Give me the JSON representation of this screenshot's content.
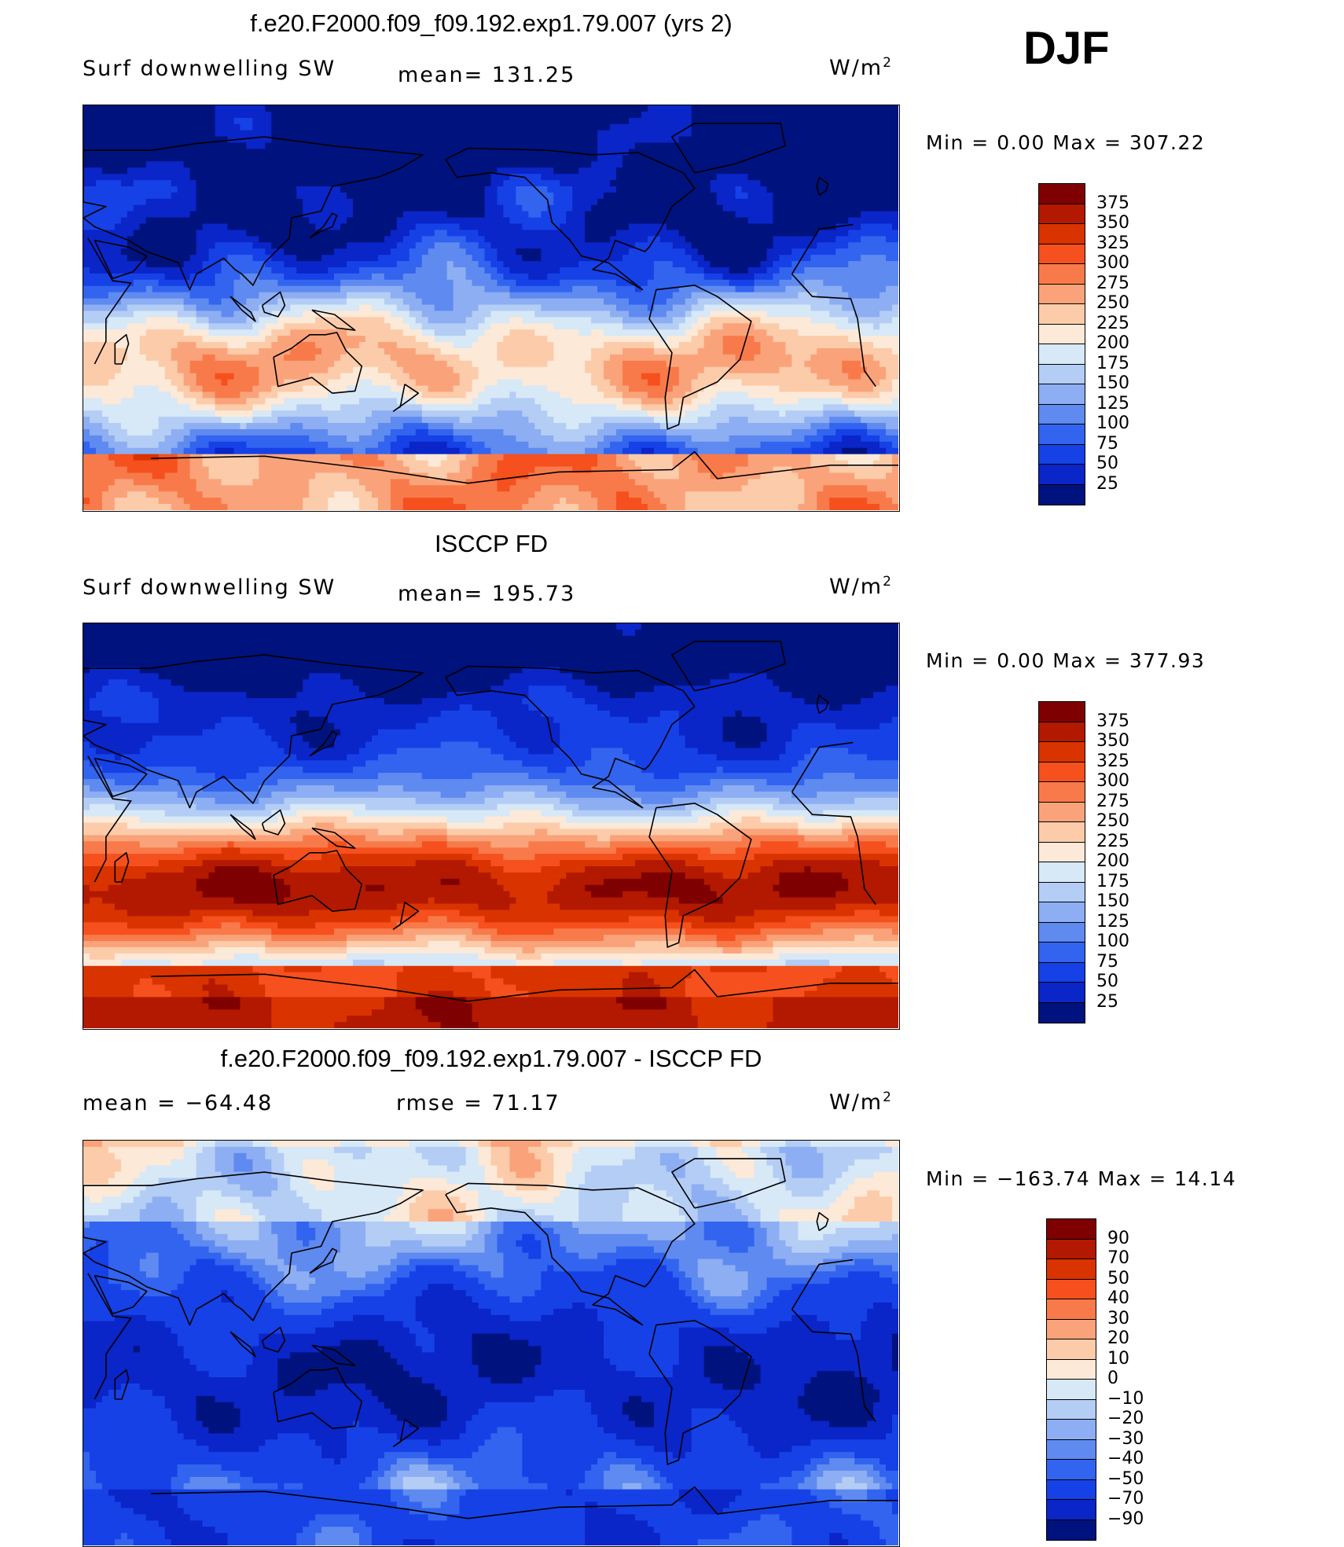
{
  "season": "DJF",
  "panels": [
    {
      "title": "f.e20.F2000.f09_f09.192.exp1.79.007 (yrs 2)",
      "left_label": "Surf downwelling SW",
      "center_label": "mean= 131.25",
      "units": "W/m",
      "units_exp": "2",
      "minmax": "Min =    0.00  Max  =  307.22",
      "palette": "abs",
      "field": "model"
    },
    {
      "title": "ISCCP FD",
      "left_label": "Surf downwelling SW",
      "center_label": "mean= 195.73",
      "units": "W/m",
      "units_exp": "2",
      "minmax": "Min =    0.00  Max  =  377.93",
      "palette": "abs",
      "field": "obs"
    },
    {
      "title": "f.e20.F2000.f09_f09.192.exp1.79.007 - ISCCP FD",
      "left_label": "mean  =  −64.48",
      "center_label": "rmse  =    71.17",
      "units": "W/m",
      "units_exp": "2",
      "minmax": "Min  =  −163.74  Max  =    14.14",
      "palette": "diff",
      "field": "diff"
    }
  ],
  "colorbars": {
    "abs": {
      "labels": [
        "375",
        "350",
        "325",
        "300",
        "275",
        "250",
        "225",
        "200",
        "175",
        "150",
        "125",
        "100",
        "75",
        "50",
        "25"
      ],
      "colors": [
        "#7f0000",
        "#b21900",
        "#d93300",
        "#f5501e",
        "#f87a4a",
        "#faa37a",
        "#fccba9",
        "#fde9d8",
        "#d7e8f7",
        "#b4cdf5",
        "#8daef2",
        "#5f8af0",
        "#3264ef",
        "#1641e6",
        "#0a25c8",
        "#00127d"
      ]
    },
    "diff": {
      "labels": [
        "90",
        "70",
        "50",
        "40",
        "30",
        "20",
        "10",
        "0",
        "−10",
        "−20",
        "−30",
        "−40",
        "−50",
        "−70",
        "−90"
      ],
      "colors": [
        "#7f0000",
        "#b21900",
        "#d93300",
        "#f5501e",
        "#f87a4a",
        "#faa37a",
        "#fccba9",
        "#fde9d8",
        "#d7e8f7",
        "#b4cdf5",
        "#8daef2",
        "#5f8af0",
        "#3264ef",
        "#1641e6",
        "#0a25c8",
        "#00127d"
      ]
    }
  }
}
